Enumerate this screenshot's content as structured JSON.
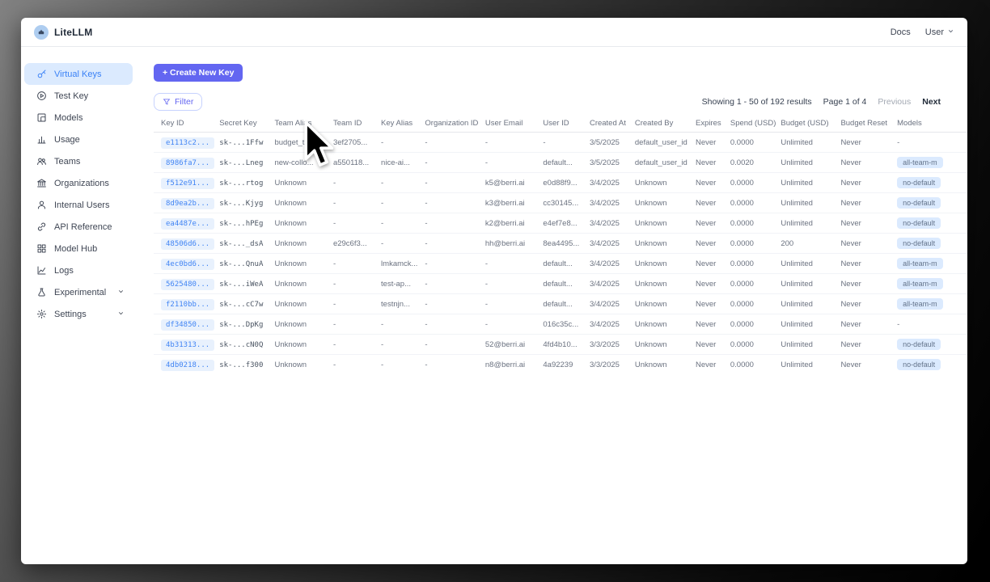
{
  "topbar": {
    "brand": "LiteLLM",
    "docs_label": "Docs",
    "user_label": "User"
  },
  "sidebar": {
    "items": [
      {
        "label": "Virtual Keys",
        "icon": "key-icon",
        "active": true,
        "chevron": false
      },
      {
        "label": "Test Key",
        "icon": "play-circle-icon",
        "active": false,
        "chevron": false
      },
      {
        "label": "Models",
        "icon": "block-icon",
        "active": false,
        "chevron": false
      },
      {
        "label": "Usage",
        "icon": "bar-chart-icon",
        "active": false,
        "chevron": false
      },
      {
        "label": "Teams",
        "icon": "team-icon",
        "active": false,
        "chevron": false
      },
      {
        "label": "Organizations",
        "icon": "bank-icon",
        "active": false,
        "chevron": false
      },
      {
        "label": "Internal Users",
        "icon": "user-icon",
        "active": false,
        "chevron": false
      },
      {
        "label": "API Reference",
        "icon": "link-icon",
        "active": false,
        "chevron": false
      },
      {
        "label": "Model Hub",
        "icon": "grid-icon",
        "active": false,
        "chevron": false
      },
      {
        "label": "Logs",
        "icon": "line-chart-icon",
        "active": false,
        "chevron": false
      },
      {
        "label": "Experimental",
        "icon": "flask-icon",
        "active": false,
        "chevron": true
      },
      {
        "label": "Settings",
        "icon": "gear-icon",
        "active": false,
        "chevron": true
      }
    ]
  },
  "toolbar": {
    "create_button": "+ Create New Key",
    "filter_button": "Filter"
  },
  "pagination": {
    "showing": "Showing 1 - 50 of 192 results",
    "page": "Page 1 of 4",
    "previous": "Previous",
    "next": "Next"
  },
  "table": {
    "columns": [
      "Key ID",
      "Secret Key",
      "Team Alias",
      "Team ID",
      "Key Alias",
      "Organization ID",
      "User Email",
      "User ID",
      "Created At",
      "Created By",
      "Expires",
      "Spend (USD)",
      "Budget (USD)",
      "Budget Reset",
      "Models"
    ],
    "rows": [
      [
        "e1113c2...",
        "sk-...1Ffw",
        "budget_te...",
        "3ef2705...",
        "-",
        "-",
        "-",
        "-",
        "3/5/2025",
        "default_user_id",
        "Never",
        "0.0000",
        "Unlimited",
        "Never",
        "-"
      ],
      [
        "8986fa7...",
        "sk-...Lneg",
        "new-collo...",
        "a550118...",
        "nice-ai...",
        "-",
        "-",
        "default...",
        "3/5/2025",
        "default_user_id",
        "Never",
        "0.0020",
        "Unlimited",
        "Never",
        "all-team-m"
      ],
      [
        "f512e91...",
        "sk-...rtog",
        "Unknown",
        "-",
        "-",
        "-",
        "k5@berri.ai",
        "e0d88f9...",
        "3/4/2025",
        "Unknown",
        "Never",
        "0.0000",
        "Unlimited",
        "Never",
        "no-default"
      ],
      [
        "8d9ea2b...",
        "sk-...Kjyg",
        "Unknown",
        "-",
        "-",
        "-",
        "k3@berri.ai",
        "cc30145...",
        "3/4/2025",
        "Unknown",
        "Never",
        "0.0000",
        "Unlimited",
        "Never",
        "no-default"
      ],
      [
        "ea4487e...",
        "sk-...hPEg",
        "Unknown",
        "-",
        "-",
        "-",
        "k2@berri.ai",
        "e4ef7e8...",
        "3/4/2025",
        "Unknown",
        "Never",
        "0.0000",
        "Unlimited",
        "Never",
        "no-default"
      ],
      [
        "48506d6...",
        "sk-..._dsA",
        "Unknown",
        "e29c6f3...",
        "-",
        "-",
        "hh@berri.ai",
        "8ea4495...",
        "3/4/2025",
        "Unknown",
        "Never",
        "0.0000",
        "200",
        "Never",
        "no-default"
      ],
      [
        "4ec0bd6...",
        "sk-...QnuA",
        "Unknown",
        "-",
        "lmkamck...",
        "-",
        "-",
        "default...",
        "3/4/2025",
        "Unknown",
        "Never",
        "0.0000",
        "Unlimited",
        "Never",
        "all-team-m"
      ],
      [
        "5625480...",
        "sk-...iWeA",
        "Unknown",
        "-",
        "test-ap...",
        "-",
        "-",
        "default...",
        "3/4/2025",
        "Unknown",
        "Never",
        "0.0000",
        "Unlimited",
        "Never",
        "all-team-m"
      ],
      [
        "f2110bb...",
        "sk-...cC7w",
        "Unknown",
        "-",
        "testnjn...",
        "-",
        "-",
        "default...",
        "3/4/2025",
        "Unknown",
        "Never",
        "0.0000",
        "Unlimited",
        "Never",
        "all-team-m"
      ],
      [
        "df34850...",
        "sk-...DpKg",
        "Unknown",
        "-",
        "-",
        "-",
        "-",
        "016c35c...",
        "3/4/2025",
        "Unknown",
        "Never",
        "0.0000",
        "Unlimited",
        "Never",
        "-"
      ],
      [
        "4b31313...",
        "sk-...cN0Q",
        "Unknown",
        "-",
        "-",
        "-",
        "52@berri.ai",
        "4fd4b10...",
        "3/3/2025",
        "Unknown",
        "Never",
        "0.0000",
        "Unlimited",
        "Never",
        "no-default"
      ],
      [
        "4db0218...",
        "sk-...f300",
        "Unknown",
        "-",
        "-",
        "-",
        "n8@berri.ai",
        "4a92239",
        "3/3/2025",
        "Unknown",
        "Never",
        "0.0000",
        "Unlimited",
        "Never",
        "no-default"
      ]
    ]
  },
  "colors": {
    "accent": "#6366f1",
    "sidebar_active_bg": "#dbeafe",
    "sidebar_active_text": "#3b82f6",
    "key_pill_bg": "#e8f1fd",
    "key_pill_text": "#4285f4",
    "badge_bg": "#dbeafe",
    "badge_text": "#64748b"
  }
}
